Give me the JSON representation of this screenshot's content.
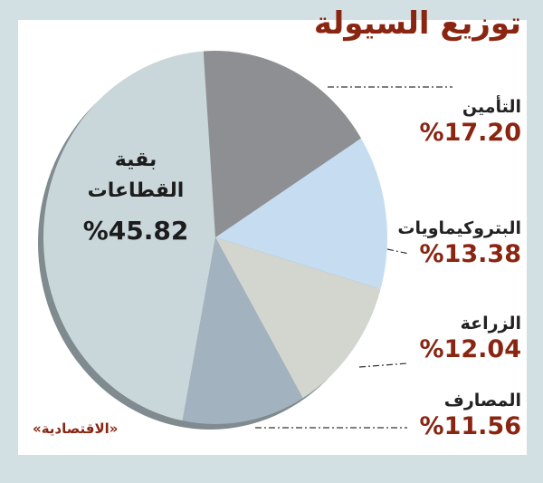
{
  "title": "توزيع السيولة",
  "source": "«الاقتصادية»",
  "colors": {
    "background": "#d2e0e4",
    "card": "#ffffff",
    "accent": "#8a2512",
    "label_text": "#222222"
  },
  "legend": [
    {
      "name": "التأمين",
      "pct": "%17.20",
      "color": "#8e8f92"
    },
    {
      "name": "البتروكيماويات",
      "pct": "%13.38",
      "color": "#c6ddf1"
    },
    {
      "name": "الزراعة",
      "pct": "%12.04",
      "color": "#d2d6cf"
    },
    {
      "name": "المصارف",
      "pct": "%11.56",
      "color": "#a3b2bf"
    }
  ],
  "center_label": {
    "line1": "بقية",
    "line2": "القطاعات",
    "pct": "%45.82",
    "color": "#c9d6da"
  },
  "chart_data": {
    "type": "pie",
    "title": "توزيع السيولة",
    "categories": [
      "التأمين",
      "البتروكيماويات",
      "الزراعة",
      "المصارف",
      "بقية القطاعات"
    ],
    "values": [
      17.2,
      13.38,
      12.04,
      11.56,
      45.82
    ],
    "unit": "%",
    "colors": [
      "#8e8f92",
      "#c6ddf1",
      "#d2d6cf",
      "#a3b2bf",
      "#c9d6da"
    ],
    "legend_position": "right",
    "source": "«الاقتصادية»"
  }
}
